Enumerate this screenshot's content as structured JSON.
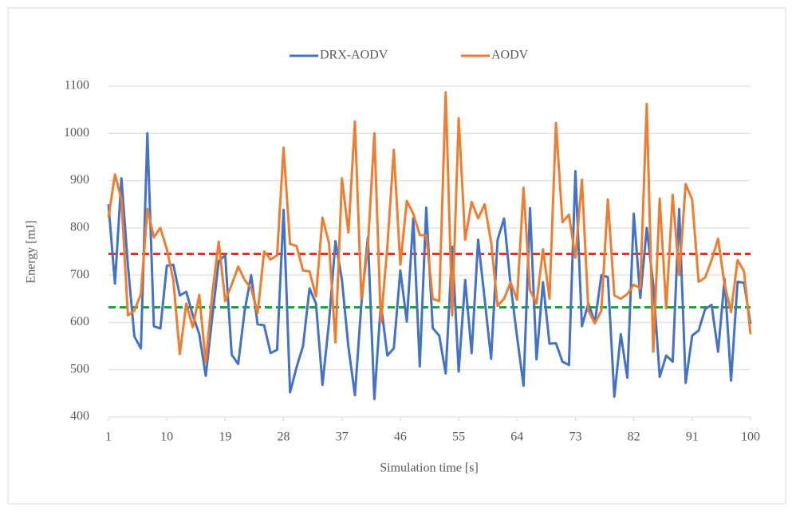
{
  "chart_data": {
    "type": "line",
    "x": [
      1,
      2,
      3,
      4,
      5,
      6,
      7,
      8,
      9,
      10,
      11,
      12,
      13,
      14,
      15,
      16,
      17,
      18,
      19,
      20,
      21,
      22,
      23,
      24,
      25,
      26,
      27,
      28,
      29,
      30,
      31,
      32,
      33,
      34,
      35,
      36,
      37,
      38,
      39,
      40,
      41,
      42,
      43,
      44,
      45,
      46,
      47,
      48,
      49,
      50,
      51,
      52,
      53,
      54,
      55,
      56,
      57,
      58,
      59,
      60,
      61,
      62,
      63,
      64,
      65,
      66,
      67,
      68,
      69,
      70,
      71,
      72,
      73,
      74,
      75,
      76,
      77,
      78,
      79,
      80,
      81,
      82,
      83,
      84,
      85,
      86,
      87,
      88,
      89,
      90,
      91,
      92,
      93,
      94,
      95,
      96,
      97,
      98,
      99,
      100
    ],
    "series": [
      {
        "name": "DRX-AODV",
        "color": "#4472c4",
        "values": [
          850,
          682,
          905,
          720,
          570,
          545,
          1000,
          592,
          587,
          720,
          722,
          657,
          665,
          615,
          575,
          487,
          610,
          730,
          742,
          532,
          512,
          625,
          700,
          596,
          594,
          535,
          542,
          838,
          452,
          505,
          550,
          672,
          640,
          468,
          600,
          772,
          690,
          548,
          446,
          640,
          780,
          438,
          640,
          530,
          545,
          710,
          602,
          820,
          507,
          843,
          588,
          572,
          492,
          760,
          496,
          690,
          535,
          775,
          650,
          523,
          775,
          820,
          680,
          570,
          466,
          842,
          522,
          685,
          555,
          556,
          517,
          510,
          920,
          592,
          640,
          600,
          700,
          696,
          443,
          575,
          483,
          830,
          652,
          800,
          680,
          485,
          530,
          517,
          840,
          472,
          572,
          583,
          628,
          637,
          538,
          692,
          477,
          686,
          684,
          597
        ]
      },
      {
        "name": "AODV",
        "color": "#ed7d31",
        "values": [
          822,
          913,
          860,
          615,
          625,
          660,
          840,
          780,
          800,
          755,
          690,
          533,
          640,
          590,
          658,
          515,
          660,
          771,
          645,
          680,
          718,
          690,
          672,
          620,
          750,
          733,
          742,
          970,
          766,
          762,
          710,
          708,
          655,
          822,
          768,
          558,
          905,
          790,
          1025,
          650,
          760,
          1000,
          600,
          760,
          965,
          722,
          857,
          830,
          785,
          784,
          650,
          645,
          1087,
          615,
          1032,
          775,
          855,
          820,
          850,
          770,
          635,
          650,
          685,
          648,
          885,
          668,
          640,
          755,
          650,
          1022,
          812,
          828,
          737,
          902,
          625,
          598,
          625,
          860,
          657,
          650,
          660,
          680,
          672,
          1062,
          538,
          862,
          630,
          870,
          700,
          893,
          860,
          686,
          695,
          732,
          777,
          680,
          622,
          732,
          708,
          575
        ]
      }
    ],
    "reference_lines": [
      {
        "value": 745,
        "color": "#e03030"
      },
      {
        "value": 632,
        "color": "#22a040"
      }
    ],
    "xlabel": "Simulation time [s]",
    "ylabel": "Energy [mJ]",
    "xlim": [
      1,
      100
    ],
    "xticks": [
      1,
      10,
      19,
      28,
      37,
      46,
      55,
      64,
      73,
      82,
      91,
      100
    ],
    "ylim": [
      400,
      1100
    ],
    "yticks": [
      400,
      500,
      600,
      700,
      800,
      900,
      1000,
      1100
    ],
    "grid": true,
    "legend": "top"
  }
}
